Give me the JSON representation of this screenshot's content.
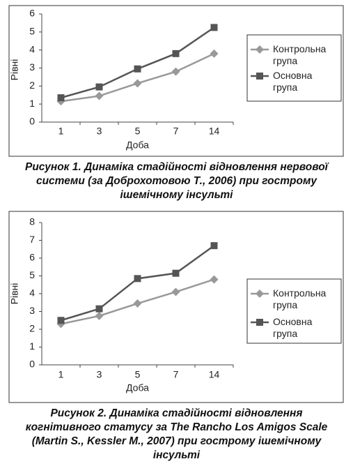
{
  "chart_data": [
    {
      "type": "line",
      "caption": "Рисунок 1.  Динаміка стадійності відновлення нервової системи (за Доброхотовою Т., 2006) при гострому ішемічному інсульті",
      "xlabel": "Доба",
      "ylabel": "Рівні",
      "categories": [
        "1",
        "3",
        "5",
        "7",
        "14"
      ],
      "series": [
        {
          "name": "Контрольна група",
          "color": "#999999",
          "marker": "diamond",
          "values": [
            1.15,
            1.45,
            2.15,
            2.8,
            3.8
          ]
        },
        {
          "name": "Основна група",
          "color": "#555555",
          "marker": "square",
          "values": [
            1.35,
            1.95,
            2.95,
            3.8,
            5.25
          ]
        }
      ],
      "ylim": [
        0,
        6
      ],
      "yticks": [
        0,
        1,
        2,
        3,
        4,
        5,
        6
      ],
      "legend": "right"
    },
    {
      "type": "line",
      "caption": "Рисунок 2.  Динаміка стадійності відновлення когнітивного статусу за The Rancho Los Amigos Scale (Martin S., Kessler M., 2007) при гострому ішемічному інсульті",
      "xlabel": "Доба",
      "ylabel": "Рівні",
      "categories": [
        "1",
        "3",
        "5",
        "7",
        "14"
      ],
      "series": [
        {
          "name": "Контрольна група",
          "color": "#999999",
          "marker": "diamond",
          "values": [
            2.3,
            2.75,
            3.45,
            4.1,
            4.8
          ]
        },
        {
          "name": "Основна група",
          "color": "#555555",
          "marker": "square",
          "values": [
            2.5,
            3.15,
            4.85,
            5.15,
            6.7
          ]
        }
      ],
      "ylim": [
        0,
        8
      ],
      "yticks": [
        0,
        1,
        2,
        3,
        4,
        5,
        6,
        7,
        8
      ],
      "legend": "right"
    }
  ]
}
